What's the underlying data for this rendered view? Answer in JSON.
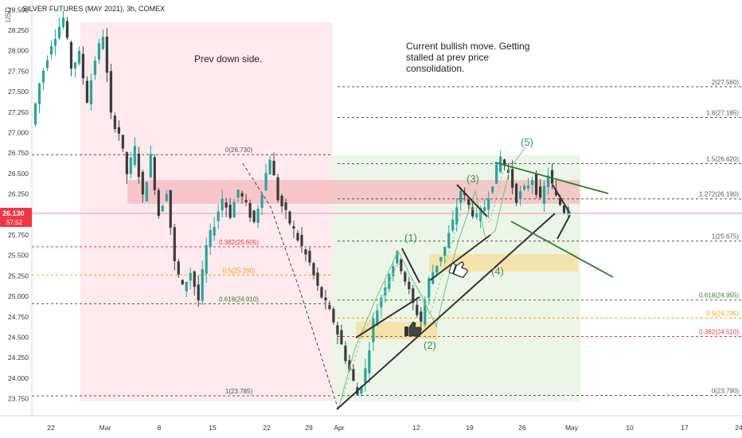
{
  "header": {
    "title": "SILVER FUTURES (MAY 2021), 3h, COMEX",
    "currency": "USD"
  },
  "price_tag": {
    "price": "26.130",
    "countdown": "57:52"
  },
  "annotations": {
    "left_zone": "Prev down side.",
    "right_zone_lines": [
      "Current bullish move. Getting",
      "stalled at prev price",
      "consolidation."
    ]
  },
  "elliott_waves": [
    "(1)",
    "(2)",
    "(3)",
    "(4)",
    "(5)"
  ],
  "colors": {
    "up": "#26a69a",
    "down": "#ef5350",
    "candle_body": "#3a3a3a",
    "left_zone": "#fce8ec",
    "right_zone": "#e9f5e6",
    "resistance_band": "#f5b8bd",
    "support_box": "#f6dfa0",
    "fib_gray": "#555555",
    "fib_red": "#e53935",
    "fib_orange": "#f59e0b",
    "fib_green": "#2e7d32",
    "price_line": "#f48fb1",
    "price_tag": "#f23645",
    "trend_black": "#333333",
    "wedge_green": "#2e7d32"
  },
  "chart_data": {
    "type": "candlestick",
    "title": "SILVER FUTURES (MAY 2021), 3h, COMEX",
    "ylim": [
      23.6,
      28.6
    ],
    "y_ticks": [
      "28.500",
      "28.250",
      "28.000",
      "27.750",
      "27.500",
      "27.250",
      "27.000",
      "26.750",
      "26.500",
      "26.250",
      "25.750",
      "25.500",
      "25.250",
      "25.000",
      "24.750",
      "24.500",
      "24.250",
      "24.000",
      "23.750"
    ],
    "x_ticks": [
      "22",
      "Mar",
      "8",
      "15",
      "22",
      "29",
      "Apr",
      "12",
      "19",
      "26",
      "May",
      "10",
      "17",
      "24"
    ],
    "close_path": [
      [
        0,
        27.1
      ],
      [
        2,
        27.6
      ],
      [
        5,
        28.1
      ],
      [
        8,
        28.4
      ],
      [
        10,
        27.8
      ],
      [
        12,
        27.95
      ],
      [
        14,
        27.4
      ],
      [
        16,
        27.9
      ],
      [
        18,
        28.2
      ],
      [
        20,
        27.2
      ],
      [
        22,
        27.0
      ],
      [
        24,
        26.5
      ],
      [
        26,
        26.8
      ],
      [
        28,
        26.2
      ],
      [
        30,
        26.7
      ],
      [
        32,
        26.0
      ],
      [
        34,
        26.3
      ],
      [
        36,
        25.4
      ],
      [
        38,
        25.1
      ],
      [
        40,
        25.3
      ],
      [
        42,
        24.95
      ],
      [
        44,
        25.6
      ],
      [
        46,
        25.9
      ],
      [
        48,
        26.2
      ],
      [
        50,
        26.0
      ],
      [
        52,
        26.3
      ],
      [
        54,
        26.1
      ],
      [
        56,
        25.9
      ],
      [
        58,
        26.3
      ],
      [
        60,
        26.7
      ],
      [
        62,
        26.2
      ],
      [
        64,
        26.0
      ],
      [
        66,
        25.8
      ],
      [
        68,
        25.6
      ],
      [
        70,
        25.4
      ],
      [
        72,
        25.1
      ],
      [
        74,
        24.9
      ],
      [
        76,
        24.7
      ],
      [
        78,
        24.4
      ],
      [
        80,
        24.1
      ],
      [
        82,
        23.8
      ],
      [
        84,
        24.1
      ],
      [
        86,
        24.7
      ],
      [
        88,
        25.0
      ],
      [
        90,
        25.3
      ],
      [
        92,
        25.5
      ],
      [
        94,
        25.2
      ],
      [
        96,
        24.9
      ],
      [
        98,
        24.7
      ],
      [
        100,
        25.2
      ],
      [
        102,
        25.4
      ],
      [
        104,
        25.6
      ],
      [
        106,
        25.9
      ],
      [
        108,
        26.3
      ],
      [
        110,
        26.1
      ],
      [
        112,
        25.95
      ],
      [
        114,
        26.1
      ],
      [
        116,
        26.4
      ],
      [
        118,
        26.7
      ],
      [
        120,
        26.5
      ],
      [
        122,
        26.2
      ],
      [
        124,
        26.3
      ],
      [
        126,
        26.45
      ],
      [
        128,
        26.15
      ],
      [
        130,
        26.5
      ],
      [
        132,
        26.2
      ],
      [
        134,
        26.05
      ],
      [
        135,
        26.13
      ]
    ],
    "zones": [
      {
        "name": "Prev down side.",
        "x_range": [
          0.108,
          0.448
        ],
        "y_range": [
          23.72,
          28.35
        ],
        "color": "red"
      },
      {
        "name": "Current bullish move",
        "x_range": [
          0.448,
          0.782
        ],
        "y_range": [
          23.72,
          26.72
        ],
        "color": "green"
      },
      {
        "name": "consolidation band",
        "x_range": [
          0.172,
          0.782
        ],
        "y_range": [
          26.13,
          26.42
        ],
        "color": "red"
      }
    ],
    "fibonacci_left": [
      {
        "label": "0(26.730)",
        "value": 26.73
      },
      {
        "label": "0.382(25.605)",
        "value": 25.605
      },
      {
        "label": "0.5(25.260)",
        "value": 25.26
      },
      {
        "label": "0.618(24.910)",
        "value": 24.91
      },
      {
        "label": "1(23.785)",
        "value": 23.785
      }
    ],
    "fibonacci_right": [
      {
        "label": "2(27.560)",
        "value": 27.56
      },
      {
        "label": "1.8(27.185)",
        "value": 27.185
      },
      {
        "label": "1.5(26.620)",
        "value": 26.62
      },
      {
        "label": "1.272(26.190)",
        "value": 26.19
      },
      {
        "label": "1(25.675)",
        "value": 25.675
      },
      {
        "label": "0.618(24.955)",
        "value": 24.955
      },
      {
        "label": "0.5(24.735)",
        "value": 24.735
      },
      {
        "label": "0.382(24.510)",
        "value": 24.51
      },
      {
        "label": "0(23.790)",
        "value": 23.79
      }
    ]
  }
}
